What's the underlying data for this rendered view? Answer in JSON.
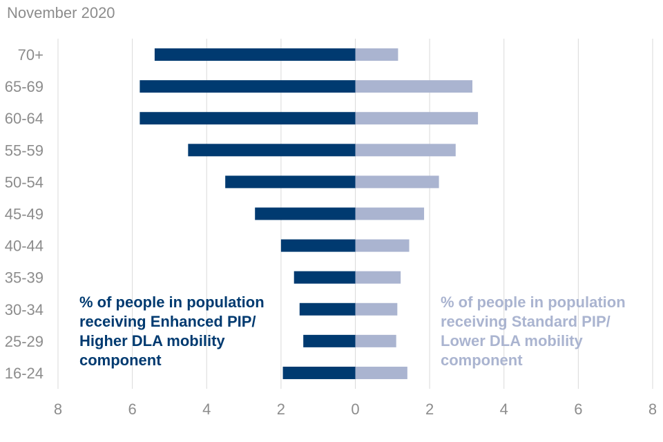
{
  "chart_data": {
    "type": "bar",
    "orientation": "horizontal-diverging",
    "subtitle": "November 2020",
    "categories": [
      "70+",
      "65-69",
      "60-64",
      "55-59",
      "50-54",
      "45-49",
      "40-44",
      "35-39",
      "30-34",
      "25-29",
      "16-24"
    ],
    "series": [
      {
        "name": "% of people in population receiving Enhanced PIP/ Higher DLA mobility component",
        "direction": "left",
        "color": "#003a70",
        "values": [
          5.4,
          5.8,
          5.8,
          4.5,
          3.5,
          2.7,
          2.0,
          1.65,
          1.5,
          1.4,
          1.95
        ]
      },
      {
        "name": "% of people in population receiving Standard PIP/ Lower DLA mobility component",
        "direction": "right",
        "color": "#aab4d0",
        "values": [
          1.15,
          3.15,
          3.3,
          2.7,
          2.25,
          1.85,
          1.45,
          1.22,
          1.13,
          1.1,
          1.4
        ]
      }
    ],
    "xlim": [
      -8,
      8
    ],
    "x_tick_labels": [
      "8",
      "6",
      "4",
      "2",
      "0",
      "2",
      "4",
      "6",
      "8"
    ],
    "x_tick_values": [
      -8,
      -6,
      -4,
      -2,
      0,
      2,
      4,
      6,
      8
    ],
    "grid": true,
    "gridline_color": "#d9d9d9",
    "axis_text_color": "#8c8c8c"
  }
}
